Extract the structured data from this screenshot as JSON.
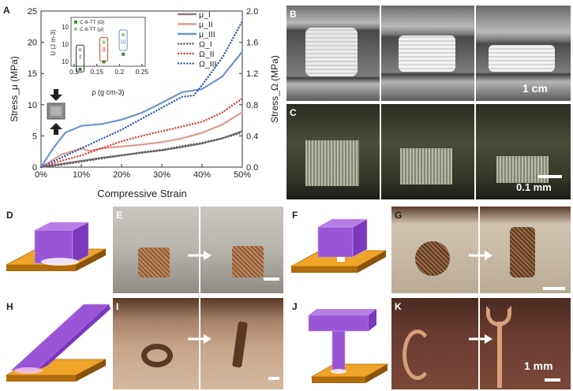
{
  "panel_letters": {
    "A": "A",
    "B": "B",
    "C": "C",
    "D": "D",
    "E": "E",
    "F": "F",
    "G": "G",
    "H": "H",
    "I": "I",
    "J": "J",
    "K": "K"
  },
  "scale_bars": {
    "B": "1 cm",
    "C": "0.1 mm",
    "K": "1 mm"
  },
  "colors": {
    "mu_I": "#8a7a7a",
    "mu_II": "#e09a90",
    "mu_III": "#6f93cf",
    "omega_I": "#555555",
    "omega_II": "#d8403a",
    "omega_III": "#2f5fb0",
    "lattice_purple": "#9a55d6",
    "substrate_orange": "#e09a1e"
  },
  "chart_data": [
    {
      "type": "line",
      "xlabel": "Compressive Strain",
      "ylabel_left": "Stress_μ (MPa)",
      "ylabel_right": "Stress_Ω (MPa)",
      "x_ticks": [
        "0%",
        "10%",
        "20%",
        "30%",
        "40%",
        "50%"
      ],
      "y_ticks_left": [
        "0",
        "5",
        "10",
        "15",
        "20",
        "25"
      ],
      "y_ticks_right": [
        "0.0",
        "0.4",
        "0.8",
        "1.2",
        "1.6",
        "2.0"
      ],
      "xlim": [
        0,
        50
      ],
      "ylim_left": [
        0,
        25
      ],
      "ylim_right": [
        0,
        2.0
      ],
      "legend": [
        "μ_I",
        "μ_II",
        "μ_III",
        "Ω_I",
        "Ω_II",
        "Ω_III"
      ],
      "series": [
        {
          "name": "μ_I",
          "axis": "left",
          "style": "solid",
          "x": [
            0,
            5,
            10,
            15,
            20,
            25,
            30,
            35,
            40,
            45,
            50
          ],
          "y": [
            0,
            0.5,
            1.0,
            1.5,
            1.9,
            2.3,
            2.7,
            3.2,
            3.8,
            4.6,
            5.8
          ]
        },
        {
          "name": "μ_II",
          "axis": "left",
          "style": "solid",
          "x": [
            0,
            5,
            10,
            12,
            15,
            20,
            25,
            30,
            35,
            40,
            45,
            50
          ],
          "y": [
            0,
            2.0,
            3.0,
            2.6,
            3.0,
            3.3,
            3.6,
            4.0,
            4.6,
            5.5,
            6.8,
            8.8
          ]
        },
        {
          "name": "μ_III",
          "axis": "left",
          "style": "solid",
          "x": [
            0,
            3,
            6,
            10,
            15,
            20,
            25,
            30,
            35,
            40,
            45,
            50
          ],
          "y": [
            0,
            3.0,
            5.5,
            6.6,
            6.9,
            7.6,
            8.7,
            10.3,
            12.0,
            12.5,
            14.5,
            18.5
          ]
        },
        {
          "name": "Ω_I",
          "axis": "right",
          "style": "dotted",
          "x": [
            0,
            5,
            10,
            15,
            20,
            25,
            30,
            35,
            40,
            45,
            50
          ],
          "y": [
            0,
            0.03,
            0.07,
            0.11,
            0.15,
            0.19,
            0.22,
            0.27,
            0.31,
            0.37,
            0.44
          ]
        },
        {
          "name": "Ω_II",
          "axis": "right",
          "style": "dotted",
          "x": [
            0,
            5,
            10,
            15,
            20,
            25,
            30,
            35,
            40,
            45,
            50
          ],
          "y": [
            0,
            0.08,
            0.15,
            0.24,
            0.33,
            0.4,
            0.46,
            0.52,
            0.58,
            0.7,
            0.88
          ]
        },
        {
          "name": "Ω_III",
          "axis": "right",
          "style": "dotted",
          "x": [
            0,
            5,
            10,
            15,
            20,
            25,
            30,
            35,
            38,
            40,
            45,
            50
          ],
          "y": [
            0,
            0.12,
            0.24,
            0.36,
            0.48,
            0.62,
            0.76,
            0.9,
            0.92,
            1.05,
            1.4,
            1.87
          ]
        }
      ]
    },
    {
      "type": "scatter",
      "xlabel": "ρ (g cm-3)",
      "ylabel": "U (J m-3)",
      "x_ticks": [
        "0.1",
        "0.15",
        "0.2",
        "0.25"
      ],
      "y_ticks": [
        "10",
        "10",
        "10"
      ],
      "xlim": [
        0.1,
        0.25
      ],
      "legend": [
        "C-6-TT (Ω)",
        "C-6-TT (μ)"
      ],
      "groups": [
        "I",
        "II",
        "III"
      ],
      "series": [
        {
          "name": "C-6-TT (Ω)",
          "x": [
            0.11,
            0.165,
            0.21
          ],
          "y_level": [
            0.25,
            0.55,
            0.85
          ]
        },
        {
          "name": "C-6-TT (μ)",
          "x": [
            0.11,
            0.165,
            0.21
          ],
          "y_level": [
            0.4,
            0.7,
            1.0
          ]
        }
      ]
    }
  ]
}
